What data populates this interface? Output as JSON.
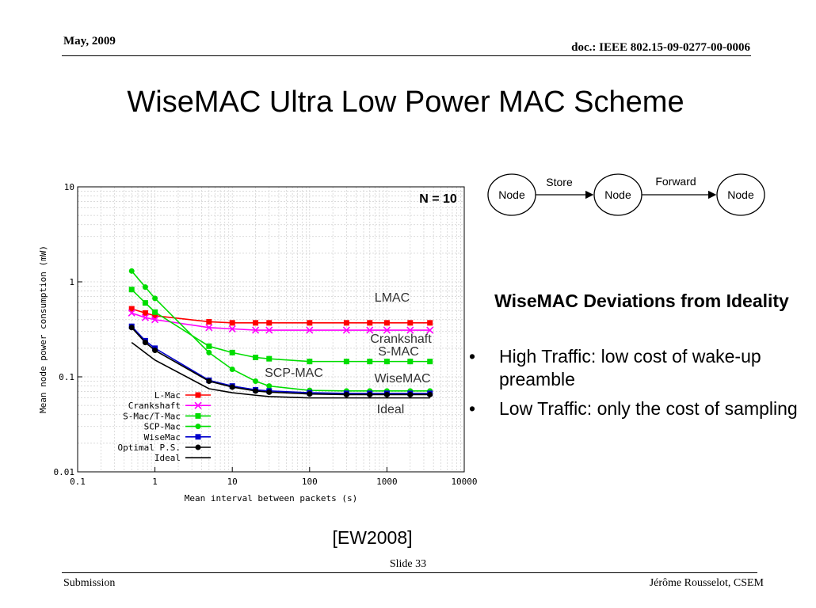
{
  "header": {
    "date": "May, 2009",
    "doc": "doc.: IEEE 802.15-09-0277-00-0006"
  },
  "slide_title": "WiseMAC Ultra Low Power MAC Scheme",
  "diagram": {
    "nodes": [
      "Node",
      "Node",
      "Node"
    ],
    "edges": [
      "Store",
      "Forward"
    ]
  },
  "deviations": {
    "title": "WiseMAC Deviations from Ideality",
    "bullets": [
      {
        "bullet": "•",
        "text": "High Traffic: low cost of wake-up preamble"
      },
      {
        "bullet": "•",
        "text": "Low Traffic: only the cost of sampling"
      }
    ]
  },
  "reference": "[EW2008]",
  "footer": {
    "slide": "Slide 33",
    "left": "Submission",
    "right": "Jérôme Rousselot, CSEM"
  },
  "chart_data": {
    "type": "line",
    "xscale": "log",
    "yscale": "log",
    "xlim": [
      0.1,
      10000
    ],
    "ylim": [
      0.01,
      10
    ],
    "x_ticks": [
      "0.1",
      "1",
      "10",
      "100",
      "1000",
      "10000"
    ],
    "y_ticks": [
      "0.01",
      "0.1",
      "1",
      "10"
    ],
    "xlabel": "Mean interval between packets (s)",
    "ylabel": "Mean node power consumption (mW)",
    "annotation": "N = 10",
    "grid": true,
    "legend_placement": "bottom-left",
    "series": [
      {
        "name": "L-Mac",
        "color": "#ff0000",
        "marker": "square",
        "x": [
          0.5,
          0.75,
          1,
          5,
          10,
          20,
          30,
          100,
          300,
          600,
          1000,
          2000,
          3600
        ],
        "y": [
          0.52,
          0.47,
          0.44,
          0.38,
          0.37,
          0.37,
          0.37,
          0.37,
          0.37,
          0.37,
          0.37,
          0.37,
          0.37
        ]
      },
      {
        "name": "Crankshaft",
        "color": "#ff00ff",
        "marker": "cross",
        "x": [
          0.5,
          0.75,
          1,
          5,
          10,
          20,
          30,
          100,
          300,
          600,
          1000,
          2000,
          3600
        ],
        "y": [
          0.47,
          0.42,
          0.4,
          0.33,
          0.32,
          0.31,
          0.31,
          0.31,
          0.31,
          0.31,
          0.31,
          0.31,
          0.31
        ]
      },
      {
        "name": "S-Mac/T-Mac",
        "color": "#00dd00",
        "marker": "square",
        "x": [
          0.5,
          0.75,
          1,
          5,
          10,
          20,
          30,
          100,
          300,
          600,
          1000,
          2000,
          3600
        ],
        "y": [
          0.83,
          0.6,
          0.48,
          0.21,
          0.18,
          0.16,
          0.155,
          0.145,
          0.145,
          0.145,
          0.145,
          0.145,
          0.145
        ]
      },
      {
        "name": "SCP-Mac",
        "color": "#00dd00",
        "marker": "circle",
        "x": [
          0.5,
          0.75,
          1,
          5,
          10,
          20,
          30,
          100,
          300,
          600,
          1000,
          2000,
          3600
        ],
        "y": [
          1.3,
          0.88,
          0.67,
          0.18,
          0.12,
          0.09,
          0.08,
          0.072,
          0.071,
          0.071,
          0.071,
          0.071,
          0.071
        ]
      },
      {
        "name": "WiseMac",
        "color": "#0000cc",
        "marker": "square",
        "x": [
          0.5,
          0.75,
          1,
          5,
          10,
          20,
          30,
          100,
          300,
          600,
          1000,
          2000,
          3600
        ],
        "y": [
          0.34,
          0.24,
          0.2,
          0.092,
          0.08,
          0.073,
          0.071,
          0.068,
          0.067,
          0.067,
          0.067,
          0.067,
          0.067
        ]
      },
      {
        "name": "Optimal P.S.",
        "color": "#000000",
        "marker": "circle",
        "x": [
          0.5,
          0.75,
          1,
          5,
          10,
          20,
          30,
          100,
          300,
          600,
          1000,
          2000,
          3600
        ],
        "y": [
          0.33,
          0.23,
          0.19,
          0.09,
          0.078,
          0.071,
          0.069,
          0.066,
          0.065,
          0.065,
          0.065,
          0.065,
          0.065
        ]
      },
      {
        "name": "Ideal",
        "color": "#000000",
        "marker": "none",
        "x": [
          0.5,
          1,
          5,
          10,
          20,
          30,
          100,
          300,
          1000,
          3600
        ],
        "y": [
          0.23,
          0.15,
          0.075,
          0.068,
          0.064,
          0.062,
          0.06,
          0.06,
          0.06,
          0.06
        ]
      }
    ],
    "curve_labels": [
      "LMAC",
      "Crankshaft",
      "S-MAC",
      "SCP-MAC",
      "WiseMAC",
      "Ideal"
    ]
  }
}
